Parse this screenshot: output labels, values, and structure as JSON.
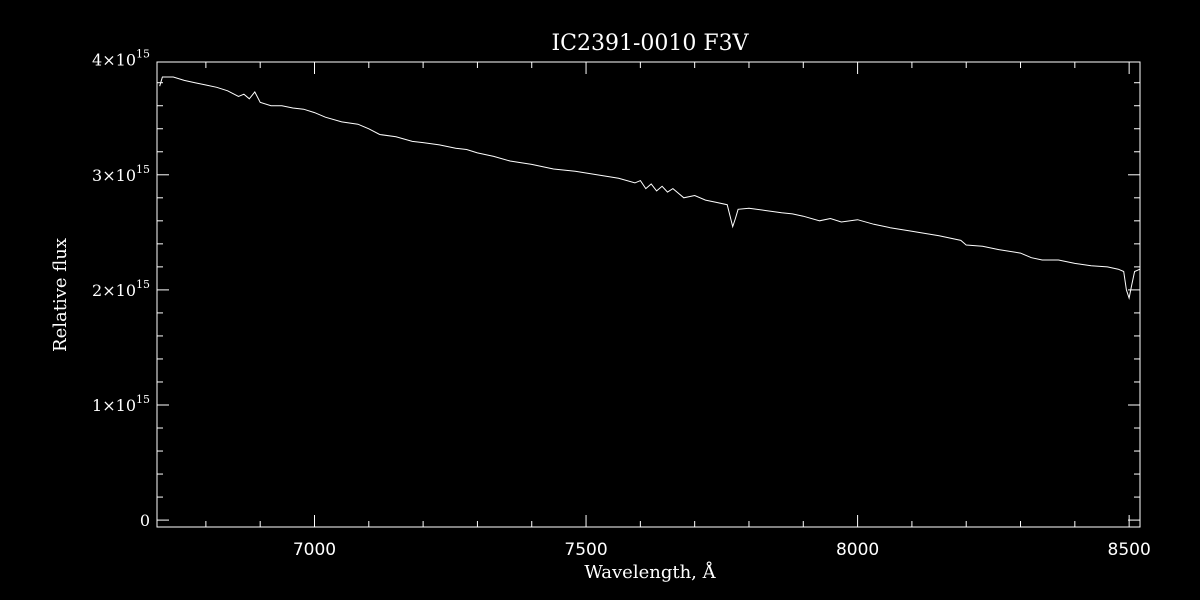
{
  "chart_data": {
    "type": "line",
    "title": "IC2391-0010   F3V",
    "xlabel": "Wavelength, Å",
    "ylabel": "Relative flux",
    "xlim": [
      6710,
      8520
    ],
    "ylim": [
      -60000000000000.0,
      3980000000000000.0
    ],
    "x_ticks": [
      7000,
      7500,
      8000,
      8500
    ],
    "x_tick_labels": [
      "7000",
      "7500",
      "8000",
      "8500"
    ],
    "x_minor_step": 100,
    "y_ticks": [
      0,
      1000000000000000.0,
      2000000000000000.0,
      3000000000000000.0,
      4000000000000000.0
    ],
    "y_tick_labels": [
      {
        "mantissa": "0",
        "exponent": ""
      },
      {
        "mantissa": "1×10",
        "exponent": "15"
      },
      {
        "mantissa": "2×10",
        "exponent": "15"
      },
      {
        "mantissa": "3×10",
        "exponent": "15"
      },
      {
        "mantissa": "4×10",
        "exponent": "15"
      }
    ],
    "y_minor_step": 200000000000000.0,
    "grid": false,
    "colors": {
      "background": "#000000",
      "line": "#ffffff",
      "axes": "#ffffff"
    },
    "series": [
      {
        "x": [
          6715,
          6720,
          6740,
          6760,
          6780,
          6800,
          6820,
          6840,
          6860,
          6870,
          6880,
          6890,
          6900,
          6920,
          6940,
          6960,
          6980,
          7000,
          7020,
          7050,
          7080,
          7100,
          7120,
          7150,
          7180,
          7200,
          7230,
          7260,
          7280,
          7300,
          7330,
          7360,
          7400,
          7440,
          7480,
          7520,
          7560,
          7590,
          7600,
          7610,
          7620,
          7630,
          7640,
          7650,
          7660,
          7680,
          7700,
          7720,
          7740,
          7760,
          7770,
          7775,
          7780,
          7800,
          7830,
          7860,
          7880,
          7900,
          7930,
          7950,
          7970,
          8000,
          8030,
          8060,
          8100,
          8150,
          8190,
          8200,
          8230,
          8260,
          8300,
          8320,
          8340,
          8370,
          8400,
          8430,
          8460,
          8480,
          8490,
          8495,
          8500,
          8505,
          8510,
          8520
        ],
        "y": [
          3770000000000000.0,
          3850000000000000.0,
          3850000000000000.0,
          3820000000000000.0,
          3800000000000000.0,
          3780000000000000.0,
          3760000000000000.0,
          3730000000000000.0,
          3680000000000000.0,
          3700000000000000.0,
          3660000000000000.0,
          3720000000000000.0,
          3630000000000000.0,
          3600000000000000.0,
          3600000000000000.0,
          3580000000000000.0,
          3570000000000000.0,
          3540000000000000.0,
          3500000000000000.0,
          3460000000000000.0,
          3440000000000000.0,
          3400000000000000.0,
          3350000000000000.0,
          3330000000000000.0,
          3290000000000000.0,
          3280000000000000.0,
          3260000000000000.0,
          3230000000000000.0,
          3220000000000000.0,
          3190000000000000.0,
          3160000000000000.0,
          3120000000000000.0,
          3090000000000000.0,
          3050000000000000.0,
          3030000000000000.0,
          3000000000000000.0,
          2970000000000000.0,
          2930000000000000.0,
          2950000000000000.0,
          2880000000000000.0,
          2920000000000000.0,
          2860000000000000.0,
          2900000000000000.0,
          2850000000000000.0,
          2880000000000000.0,
          2800000000000000.0,
          2820000000000000.0,
          2780000000000000.0,
          2760000000000000.0,
          2740000000000000.0,
          2550000000000000.0,
          2620000000000000.0,
          2700000000000000.0,
          2710000000000000.0,
          2690000000000000.0,
          2670000000000000.0,
          2660000000000000.0,
          2640000000000000.0,
          2600000000000000.0,
          2620000000000000.0,
          2590000000000000.0,
          2610000000000000.0,
          2570000000000000.0,
          2540000000000000.0,
          2510000000000000.0,
          2470000000000000.0,
          2430000000000000.0,
          2390000000000000.0,
          2380000000000000.0,
          2350000000000000.0,
          2320000000000000.0,
          2280000000000000.0,
          2260000000000000.0,
          2260000000000000.0,
          2230000000000000.0,
          2210000000000000.0,
          2200000000000000.0,
          2180000000000000.0,
          2160000000000000.0,
          2000000000000000.0,
          1930000000000000.0,
          2050000000000000.0,
          2160000000000000.0,
          2180000000000000.0
        ]
      }
    ]
  }
}
